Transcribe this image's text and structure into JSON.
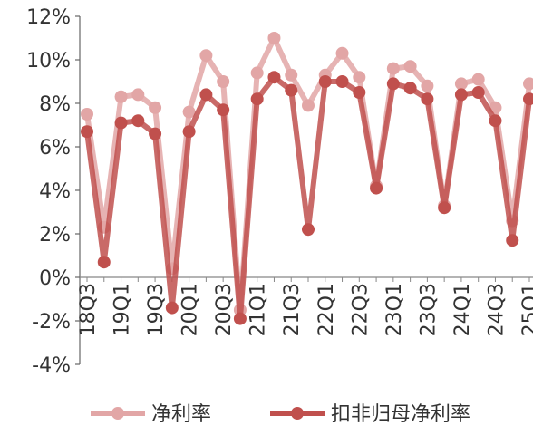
{
  "chart_data": {
    "type": "line",
    "title": "",
    "xlabel": "",
    "ylabel": "",
    "ylim": [
      -4,
      12
    ],
    "y_ticks": [
      "12%",
      "10%",
      "8%",
      "6%",
      "4%",
      "2%",
      "0%",
      "-2%",
      "-4%"
    ],
    "grid": false,
    "legend_position": "bottom",
    "x": [
      "18Q3",
      "18Q4",
      "19Q1",
      "19Q2",
      "19Q3",
      "19Q4",
      "20Q1",
      "20Q2",
      "20Q3",
      "20Q4",
      "21Q1",
      "21Q2",
      "21Q3",
      "21Q4",
      "22Q1",
      "22Q2",
      "22Q3",
      "22Q4",
      "23Q1",
      "23Q2",
      "23Q3",
      "23Q4",
      "24Q1",
      "24Q2",
      "24Q3",
      "24Q4",
      "25Q1"
    ],
    "x_tick_labels": [
      "18Q3",
      "19Q1",
      "19Q3",
      "20Q1",
      "20Q3",
      "21Q1",
      "21Q3",
      "22Q1",
      "22Q3",
      "23Q1",
      "23Q3",
      "24Q1",
      "24Q3",
      "25Q1"
    ],
    "series": [
      {
        "name": "净利率",
        "color": "#e2a6a6",
        "values": [
          7.5,
          2.3,
          8.3,
          8.4,
          7.8,
          0.4,
          7.6,
          10.2,
          9.0,
          -1.5,
          9.4,
          11.0,
          9.3,
          7.9,
          9.3,
          10.3,
          9.2,
          4.2,
          9.6,
          9.7,
          8.8,
          3.3,
          8.9,
          9.1,
          7.8,
          2.6,
          8.9
        ]
      },
      {
        "name": "扣非归母净利率",
        "color": "#c0504d",
        "values": [
          6.7,
          0.7,
          7.1,
          7.2,
          6.6,
          -1.4,
          6.7,
          8.4,
          7.7,
          -1.9,
          8.2,
          9.2,
          8.6,
          2.2,
          9.0,
          9.0,
          8.5,
          4.1,
          8.9,
          8.7,
          8.2,
          3.2,
          8.4,
          8.5,
          7.2,
          1.7,
          8.2
        ]
      }
    ]
  }
}
